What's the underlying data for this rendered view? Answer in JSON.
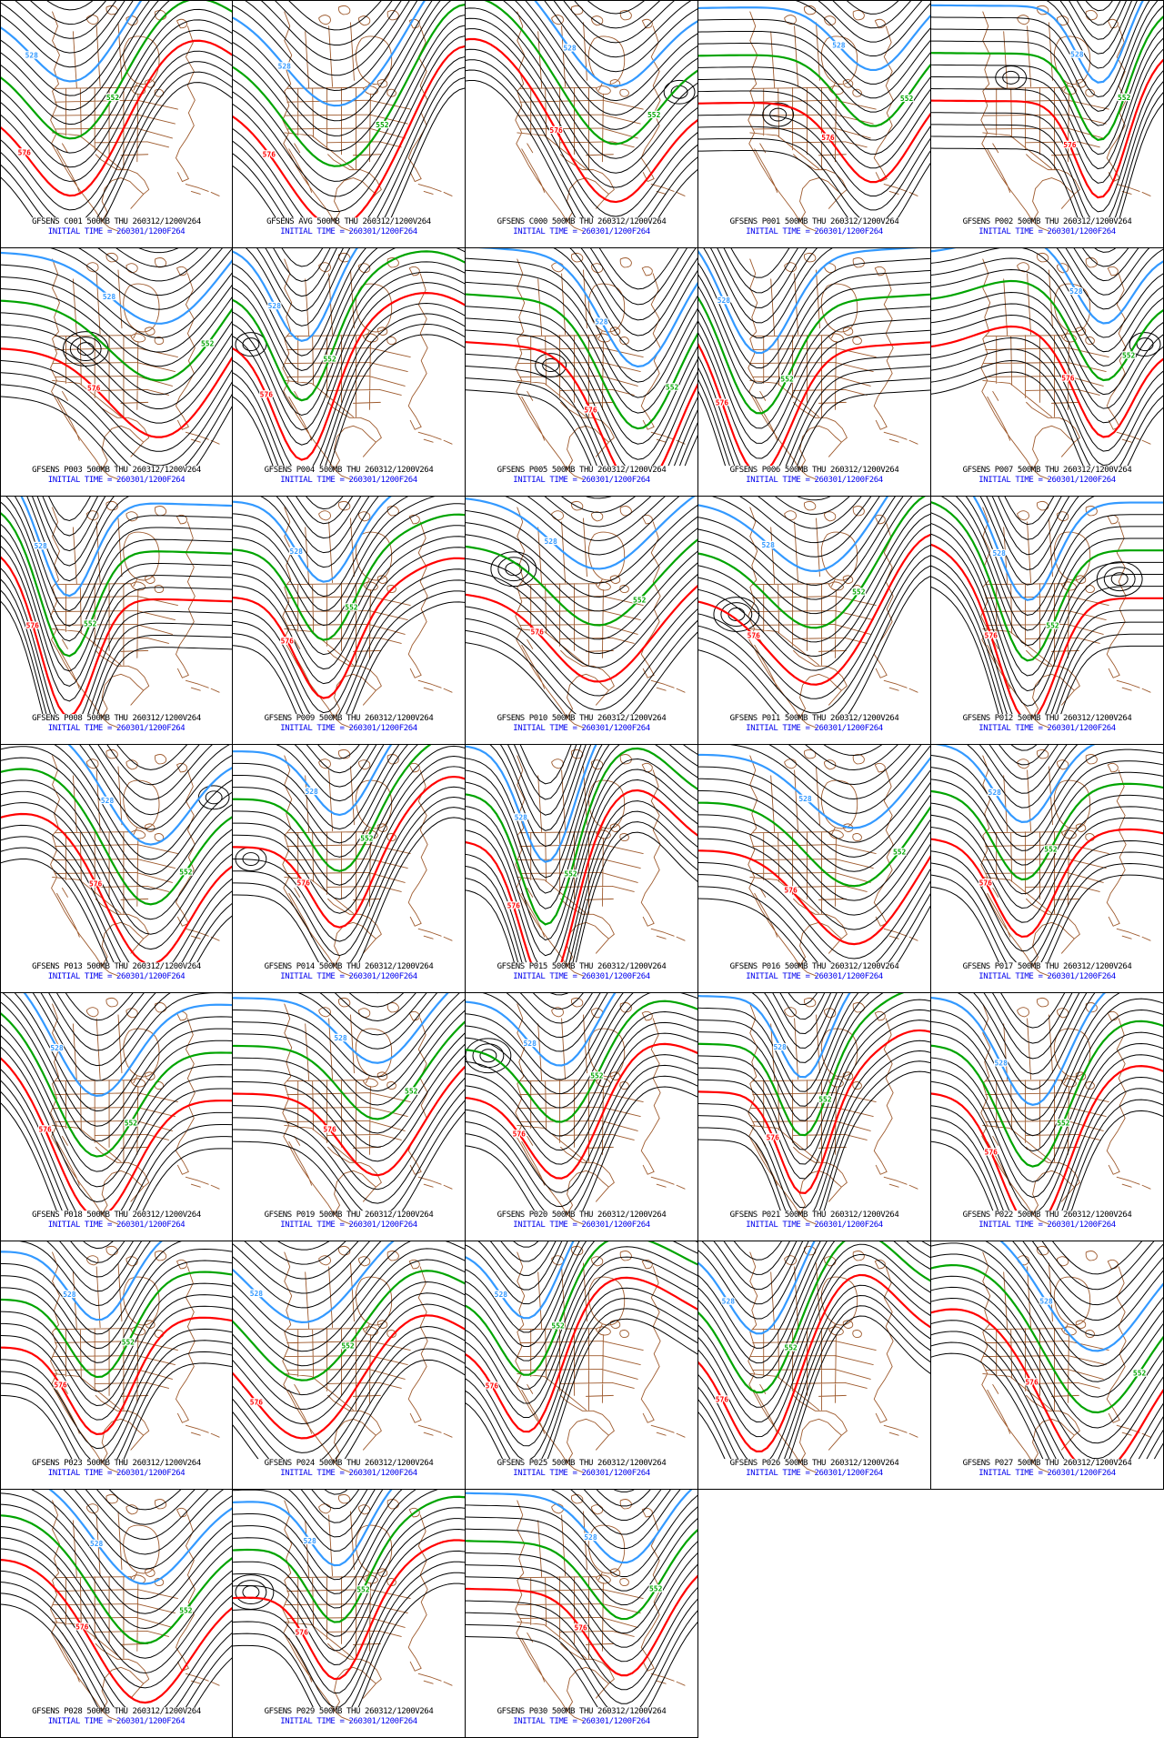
{
  "product": {
    "model": "GFSENS",
    "level": "500MB",
    "valid_time": "THU 260312/1200V264",
    "initial_time": "INITIAL TIME = 260301/1200F264"
  },
  "contours": {
    "blue_level": "528",
    "green_level": "552",
    "red_level": "576"
  },
  "colors": {
    "black_contour": "#000000",
    "blue_contour": "#3399ff",
    "green_contour": "#00a400",
    "red_contour": "#ff0000",
    "basemap": "#9e5a2d",
    "caption_text": "#000000",
    "initial_time_text": "#0000ee"
  },
  "panels": [
    {
      "member": "C001",
      "title": "GFSENS C001 500MB THU 260312/1200V264",
      "initial_time": "INITIAL TIME = 260301/1200F264"
    },
    {
      "member": "AVG",
      "title": "GFSENS AVG 500MB THU 260312/1200V264",
      "initial_time": "INITIAL TIME = 260301/1200F264"
    },
    {
      "member": "C000",
      "title": "GFSENS C000 500MB THU 260312/1200V264",
      "initial_time": "INITIAL TIME = 260301/1200F264"
    },
    {
      "member": "P001",
      "title": "GFSENS P001 500MB THU 260312/1200V264",
      "initial_time": "INITIAL TIME = 260301/1200F264"
    },
    {
      "member": "P002",
      "title": "GFSENS P002 500MB THU 260312/1200V264",
      "initial_time": "INITIAL TIME = 260301/1200F264"
    },
    {
      "member": "P003",
      "title": "GFSENS P003 500MB THU 260312/1200V264",
      "initial_time": "INITIAL TIME = 260301/1200F264"
    },
    {
      "member": "P004",
      "title": "GFSENS P004 500MB THU 260312/1200V264",
      "initial_time": "INITIAL TIME = 260301/1200F264"
    },
    {
      "member": "P005",
      "title": "GFSENS P005 500MB THU 260312/1200V264",
      "initial_time": "INITIAL TIME = 260301/1200F264"
    },
    {
      "member": "P006",
      "title": "GFSENS P006 500MB THU 260312/1200V264",
      "initial_time": "INITIAL TIME = 260301/1200F264"
    },
    {
      "member": "P007",
      "title": "GFSENS P007 500MB THU 260312/1200V264",
      "initial_time": "INITIAL TIME = 260301/1200F264"
    },
    {
      "member": "P008",
      "title": "GFSENS P008 500MB THU 260312/1200V264",
      "initial_time": "INITIAL TIME = 260301/1200F264"
    },
    {
      "member": "P009",
      "title": "GFSENS P009 500MB THU 260312/1200V264",
      "initial_time": "INITIAL TIME = 260301/1200F264"
    },
    {
      "member": "P010",
      "title": "GFSENS P010 500MB THU 260312/1200V264",
      "initial_time": "INITIAL TIME = 260301/1200F264"
    },
    {
      "member": "P011",
      "title": "GFSENS P011 500MB THU 260312/1200V264",
      "initial_time": "INITIAL TIME = 260301/1200F264"
    },
    {
      "member": "P012",
      "title": "GFSENS P012 500MB THU 260312/1200V264",
      "initial_time": "INITIAL TIME = 260301/1200F264"
    },
    {
      "member": "P013",
      "title": "GFSENS P013 500MB THU 260312/1200V264",
      "initial_time": "INITIAL TIME = 260301/1200F264"
    },
    {
      "member": "P014",
      "title": "GFSENS P014 500MB THU 260312/1200V264",
      "initial_time": "INITIAL TIME = 260301/1200F264"
    },
    {
      "member": "P015",
      "title": "GFSENS P015 500MB THU 260312/1200V264",
      "initial_time": "INITIAL TIME = 260301/1200F264"
    },
    {
      "member": "P016",
      "title": "GFSENS P016 500MB THU 260312/1200V264",
      "initial_time": "INITIAL TIME = 260301/1200F264"
    },
    {
      "member": "P017",
      "title": "GFSENS P017 500MB THU 260312/1200V264",
      "initial_time": "INITIAL TIME = 260301/1200F264"
    },
    {
      "member": "P018",
      "title": "GFSENS P018 500MB THU 260312/1200V264",
      "initial_time": "INITIAL TIME = 260301/1200F264"
    },
    {
      "member": "P019",
      "title": "GFSENS P019 500MB THU 260312/1200V264",
      "initial_time": "INITIAL TIME = 260301/1200F264"
    },
    {
      "member": "P020",
      "title": "GFSENS P020 500MB THU 260312/1200V264",
      "initial_time": "INITIAL TIME = 260301/1200F264"
    },
    {
      "member": "P021",
      "title": "GFSENS P021 500MB THU 260312/1200V264",
      "initial_time": "INITIAL TIME = 260301/1200F264"
    },
    {
      "member": "P022",
      "title": "GFSENS P022 500MB THU 260312/1200V264",
      "initial_time": "INITIAL TIME = 260301/1200F264"
    },
    {
      "member": "P023",
      "title": "GFSENS P023 500MB THU 260312/1200V264",
      "initial_time": "INITIAL TIME = 260301/1200F264"
    },
    {
      "member": "P024",
      "title": "GFSENS P024 500MB THU 260312/1200V264",
      "initial_time": "INITIAL TIME = 260301/1200F264"
    },
    {
      "member": "P025",
      "title": "GFSENS P025 500MB THU 260312/1200V264",
      "initial_time": "INITIAL TIME = 260301/1200F264"
    },
    {
      "member": "P026",
      "title": "GFSENS P026 500MB THU 260312/1200V264",
      "initial_time": "INITIAL TIME = 260301/1200F264"
    },
    {
      "member": "P027",
      "title": "GFSENS P027 500MB THU 260312/1200V264",
      "initial_time": "INITIAL TIME = 260301/1200F264"
    },
    {
      "member": "P028",
      "title": "GFSENS P028 500MB THU 260312/1200V264",
      "initial_time": "INITIAL TIME = 260301/1200F264"
    },
    {
      "member": "P029",
      "title": "GFSENS P029 500MB THU 260312/1200V264",
      "initial_time": "INITIAL TIME = 260301/1200F264"
    },
    {
      "member": "P030",
      "title": "GFSENS P030 500MB THU 260312/1200V264",
      "initial_time": "INITIAL TIME = 260301/1200F264"
    }
  ]
}
